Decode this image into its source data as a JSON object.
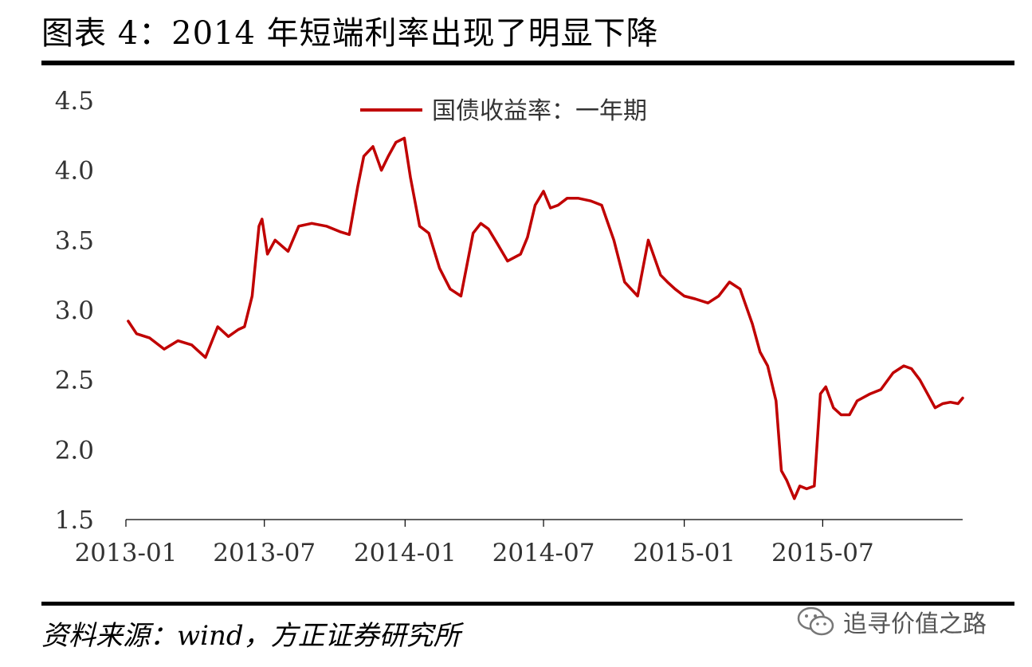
{
  "header": {
    "title": "图表 4：2014 年短端利率出现了明显下降"
  },
  "footer": {
    "source": "资料来源：wind，方正证券研究所",
    "watermark": "追寻价值之路",
    "watermark_icon": "wechat-icon"
  },
  "chart_data": {
    "type": "line",
    "title": "",
    "xlabel": "",
    "ylabel": "",
    "ylim": [
      1.5,
      4.5
    ],
    "yticks": [
      "1.5",
      "2.0",
      "2.5",
      "3.0",
      "3.5",
      "4.0",
      "4.5"
    ],
    "xticks": [
      "2013-01",
      "2013-07",
      "2014-01",
      "2014-07",
      "2015-01",
      "2015-07"
    ],
    "legend_position": "top-center",
    "grid": false,
    "series": [
      {
        "name": "国债收益率：一年期",
        "color": "#c00000",
        "x": [
          "2013-01-04",
          "2013-01-15",
          "2013-02-01",
          "2013-02-20",
          "2013-03-10",
          "2013-03-28",
          "2013-04-15",
          "2013-05-01",
          "2013-05-15",
          "2013-05-28",
          "2013-06-05",
          "2013-06-15",
          "2013-06-24",
          "2013-06-28",
          "2013-07-05",
          "2013-07-15",
          "2013-08-01",
          "2013-08-15",
          "2013-09-01",
          "2013-09-20",
          "2013-10-08",
          "2013-10-20",
          "2013-10-31",
          "2013-11-08",
          "2013-11-20",
          "2013-12-01",
          "2013-12-10",
          "2013-12-20",
          "2013-12-31",
          "2014-01-08",
          "2014-01-20",
          "2014-02-01",
          "2014-02-15",
          "2014-03-01",
          "2014-03-15",
          "2014-03-31",
          "2014-04-10",
          "2014-04-20",
          "2014-05-01",
          "2014-05-15",
          "2014-06-01",
          "2014-06-10",
          "2014-06-20",
          "2014-07-01",
          "2014-07-10",
          "2014-07-20",
          "2014-08-01",
          "2014-08-15",
          "2014-09-01",
          "2014-09-15",
          "2014-10-01",
          "2014-10-15",
          "2014-11-01",
          "2014-11-15",
          "2014-12-01",
          "2014-12-10",
          "2014-12-20",
          "2015-01-01",
          "2015-01-15",
          "2015-02-01",
          "2015-02-15",
          "2015-03-01",
          "2015-03-15",
          "2015-03-31",
          "2015-04-10",
          "2015-04-20",
          "2015-05-01",
          "2015-05-08",
          "2015-05-15",
          "2015-05-25",
          "2015-06-01",
          "2015-06-10",
          "2015-06-20",
          "2015-06-28",
          "2015-07-05",
          "2015-07-15",
          "2015-07-25",
          "2015-08-05",
          "2015-08-15",
          "2015-09-01",
          "2015-09-15",
          "2015-10-01",
          "2015-10-15",
          "2015-10-25",
          "2015-11-05",
          "2015-11-15",
          "2015-11-25",
          "2015-12-05",
          "2015-12-15",
          "2015-12-25",
          "2015-12-31"
        ],
        "values": [
          2.92,
          2.83,
          2.8,
          2.72,
          2.78,
          2.75,
          2.66,
          2.88,
          2.81,
          2.86,
          2.88,
          3.1,
          3.6,
          3.65,
          3.4,
          3.5,
          3.42,
          3.6,
          3.62,
          3.6,
          3.56,
          3.54,
          3.88,
          4.1,
          4.17,
          4.0,
          4.1,
          4.2,
          4.23,
          3.95,
          3.6,
          3.55,
          3.3,
          3.15,
          3.1,
          3.55,
          3.62,
          3.58,
          3.48,
          3.35,
          3.4,
          3.52,
          3.75,
          3.85,
          3.73,
          3.75,
          3.8,
          3.8,
          3.78,
          3.75,
          3.5,
          3.2,
          3.1,
          3.5,
          3.25,
          3.2,
          3.15,
          3.1,
          3.08,
          3.05,
          3.1,
          3.2,
          3.15,
          2.9,
          2.7,
          2.6,
          2.35,
          1.85,
          1.78,
          1.65,
          1.74,
          1.72,
          1.74,
          2.4,
          2.45,
          2.3,
          2.25,
          2.25,
          2.35,
          2.4,
          2.43,
          2.55,
          2.6,
          2.58,
          2.5,
          2.4,
          2.3,
          2.33,
          2.34,
          2.33,
          2.37
        ]
      }
    ]
  }
}
